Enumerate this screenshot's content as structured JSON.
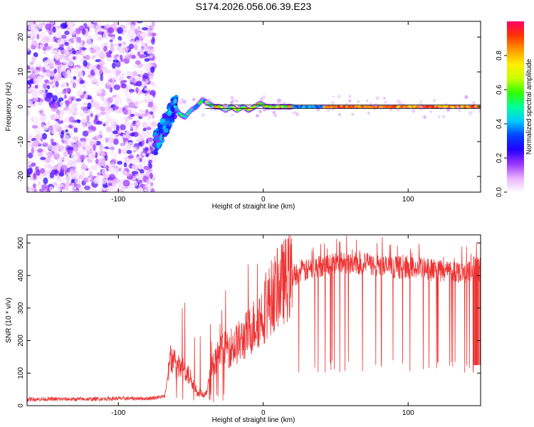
{
  "figure": {
    "title": "S174.2026.056.06.39.E23"
  },
  "chart_data": [
    {
      "type": "heatmap",
      "title": "",
      "xlabel": "Height of straight line (km)",
      "ylabel": "Frequency (Hz)",
      "xlim": [
        -163,
        150
      ],
      "ylim": [
        -24.5,
        24.5
      ],
      "xticks": [
        -100,
        0,
        100
      ],
      "yticks": [
        -20,
        -10,
        0,
        10,
        20
      ],
      "colorbar": {
        "label": "Normalized spectral amplitude",
        "range": [
          0,
          1
        ],
        "ticks": [
          0,
          0.2,
          0.4,
          0.6,
          0.8
        ],
        "colors": [
          "#ffffff",
          "#e8b0ff",
          "#9933ff",
          "#2200ff",
          "#0044ff",
          "#00ccff",
          "#00ff99",
          "#33ff00",
          "#ccff00",
          "#ffee00",
          "#ff9900",
          "#ff3300",
          "#ff0066"
        ]
      },
      "regions": [
        {
          "name": "noise",
          "x_range": [
            -163,
            -75
          ],
          "freq_range": [
            -24.5,
            24.5
          ],
          "amplitude": [
            0.02,
            0.25
          ]
        },
        {
          "name": "transition",
          "x_range": [
            -75,
            -60
          ],
          "freq_range": [
            -12,
            5
          ],
          "amplitude": [
            0.15,
            0.45
          ]
        },
        {
          "name": "tone",
          "x_range": [
            -60,
            150
          ],
          "freq": 0,
          "amplitude": [
            0.4,
            0.98
          ]
        }
      ],
      "tone_track": {
        "x": [
          -75,
          -70,
          -66,
          -62,
          -58,
          -54,
          -50,
          -46,
          -42,
          -38,
          -34,
          -30,
          -26,
          -22,
          -18,
          -14,
          -10,
          -6,
          -2,
          2,
          6,
          10,
          20,
          40,
          60,
          80,
          100,
          120,
          150
        ],
        "freq": [
          -10,
          -6,
          -2,
          1,
          -2,
          -3,
          -1,
          0,
          2,
          1,
          0,
          0,
          -1,
          0,
          -1,
          0,
          -1,
          0,
          1,
          0,
          0,
          0,
          0,
          0,
          0,
          0,
          0,
          0,
          0
        ]
      },
      "straight_line_freq": 0
    },
    {
      "type": "line",
      "title": "",
      "xlabel": "Height of straight line (km)",
      "ylabel": "SNR (10 * v/v)",
      "xlim": [
        -163,
        150
      ],
      "ylim": [
        0,
        525
      ],
      "xticks": [
        -100,
        0,
        100
      ],
      "yticks": [
        0,
        100,
        200,
        300,
        400,
        500
      ],
      "color": "#ee3333",
      "series": [
        {
          "name": "SNR",
          "x": [
            -163,
            -140,
            -120,
            -100,
            -80,
            -68,
            -64,
            -60,
            -55,
            -50,
            -45,
            -40,
            -35,
            -30,
            -25,
            -20,
            -15,
            -10,
            -5,
            0,
            5,
            10,
            15,
            20,
            25,
            30,
            35,
            40,
            50,
            60,
            70,
            80,
            90,
            100,
            110,
            120,
            130,
            140,
            150
          ],
          "values": [
            20,
            20,
            20,
            22,
            22,
            28,
            150,
            120,
            110,
            85,
            40,
            35,
            120,
            160,
            175,
            185,
            200,
            225,
            255,
            285,
            330,
            360,
            385,
            400,
            410,
            415,
            425,
            430,
            440,
            440,
            435,
            430,
            425,
            425,
            420,
            415,
            415,
            410,
            415
          ]
        }
      ],
      "dropouts": {
        "x_range": [
          20,
          150
        ],
        "min_values": [
          100,
          140
        ]
      }
    }
  ]
}
